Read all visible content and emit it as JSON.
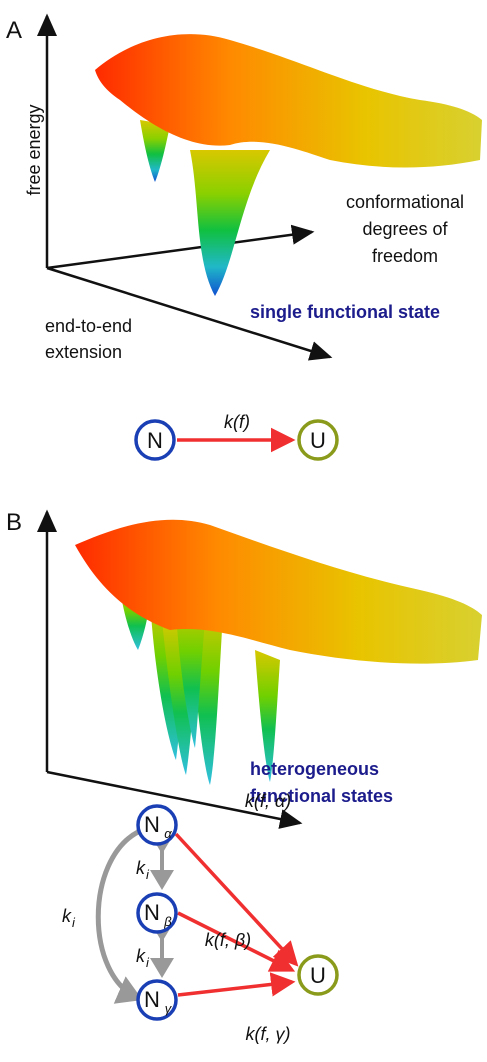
{
  "panels": [
    {
      "label": "A",
      "y_axis_label": "free energy",
      "z_axis_label": [
        "conformational",
        "degrees of",
        "freedom"
      ],
      "x_axis_label": [
        "end-to-end",
        "extension"
      ],
      "caption": [
        "single functional state"
      ],
      "scheme": {
        "nodes": [
          {
            "main": "N"
          },
          {
            "main": "U"
          }
        ],
        "edges": [
          {
            "label": "k(f)"
          }
        ]
      }
    },
    {
      "label": "B",
      "caption": [
        "heterogeneous",
        "functional states"
      ],
      "scheme": {
        "nodes": [
          {
            "main": "N",
            "sub": "α"
          },
          {
            "main": "N",
            "sub": "β"
          },
          {
            "main": "N",
            "sub": "γ"
          },
          {
            "main": "U"
          }
        ],
        "edges": [
          {
            "label": "k(f, α)"
          },
          {
            "label": "k(f, β)"
          },
          {
            "label": "k(f, γ)"
          }
        ],
        "exchange": [
          {
            "main": "k",
            "sub": "i"
          },
          {
            "main": "k",
            "sub": "i"
          },
          {
            "main": "k",
            "sub": "i"
          }
        ]
      }
    }
  ]
}
